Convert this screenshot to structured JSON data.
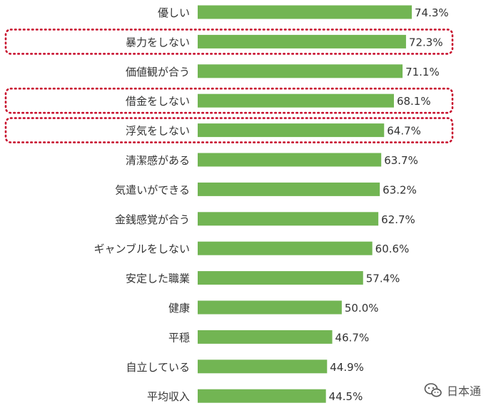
{
  "chart_data": {
    "type": "bar",
    "orientation": "horizontal",
    "categories": [
      "優しい",
      "暴力をしない",
      "価値観が合う",
      "借金をしない",
      "浮気をしない",
      "清潔感がある",
      "気遣いができる",
      "金銭感覚が合う",
      "ギャンブルをしない",
      "安定した職業",
      "健康",
      "平穏",
      "自立している",
      "平均収入"
    ],
    "values": [
      74.3,
      72.3,
      71.1,
      68.1,
      64.7,
      63.7,
      63.2,
      62.7,
      60.6,
      57.4,
      50.0,
      46.7,
      44.9,
      44.5
    ],
    "value_labels": [
      "74.3%",
      "72.3%",
      "71.1%",
      "68.1%",
      "64.7%",
      "63.7%",
      "63.2%",
      "62.7%",
      "60.6%",
      "57.4%",
      "50.0%",
      "46.7%",
      "44.9%",
      "44.5%"
    ],
    "highlighted": [
      "暴力をしない",
      "借金をしない",
      "浮気をしない"
    ],
    "title": "",
    "xlabel": "",
    "ylabel": "",
    "xlim": [
      0,
      100
    ],
    "grid": false,
    "legend": "none",
    "colors": {
      "bar": "#72b553",
      "highlight_box": "#c8102e",
      "text": "#333333"
    }
  },
  "watermark": {
    "text": "日本通",
    "icon": "wechat-icon"
  }
}
